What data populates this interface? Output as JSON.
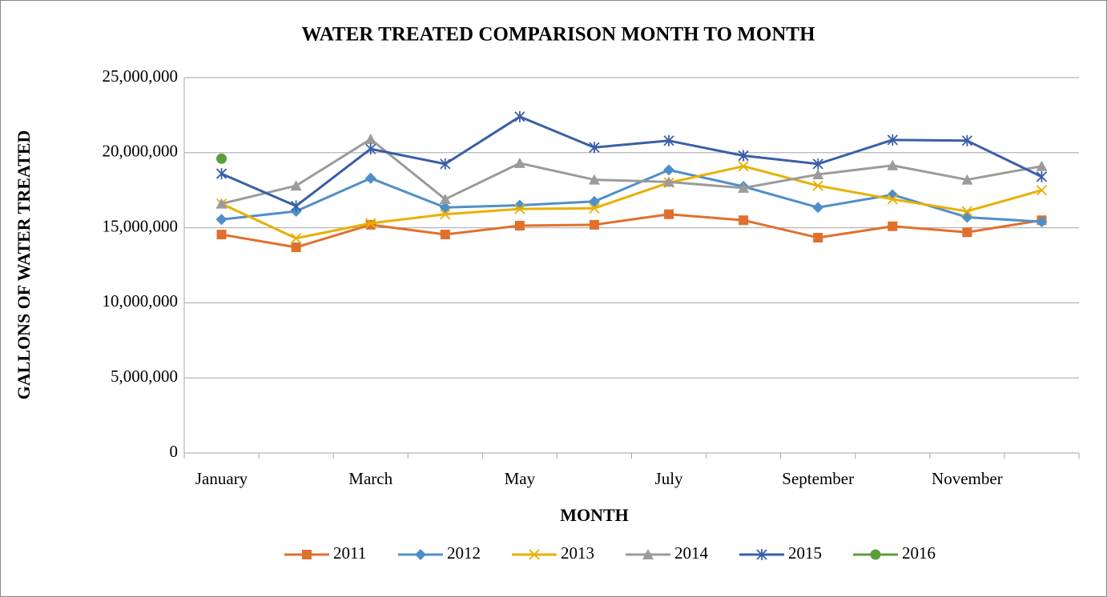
{
  "chart_data": {
    "type": "line",
    "title": "WATER TREATED COMPARISON MONTH TO MONTH",
    "x_label": "MONTH",
    "y_label": "GALLONS OF WATER TREATED",
    "categories": [
      "January",
      null,
      "March",
      null,
      "May",
      null,
      "July",
      null,
      "September",
      null,
      "November",
      null
    ],
    "ylim": [
      0,
      25000000
    ],
    "yticks": [
      {
        "value": 0,
        "label": "0"
      },
      {
        "value": 5000000,
        "label": "5,000,000"
      },
      {
        "value": 10000000,
        "label": "10,000,000"
      },
      {
        "value": 15000000,
        "label": "15,000,000"
      },
      {
        "value": 20000000,
        "label": "20,000,000"
      },
      {
        "value": 25000000,
        "label": "25,000,000"
      }
    ],
    "grid": true,
    "legend": "bottom",
    "series": [
      {
        "name": "2011",
        "color": "#e0702c",
        "marker": "square",
        "values": [
          14550000,
          13700000,
          15200000,
          14550000,
          15140000,
          15200000,
          15900000,
          15500000,
          14340000,
          15100000,
          14700000,
          15500000
        ]
      },
      {
        "name": "2012",
        "color": "#4f8fc8",
        "marker": "diamond",
        "values": [
          15550000,
          16100000,
          18300000,
          16350000,
          16500000,
          16750000,
          18850000,
          17750000,
          16350000,
          17200000,
          15700000,
          15400000
        ]
      },
      {
        "name": "2013",
        "color": "#e8b000",
        "marker": "x",
        "values": [
          16600000,
          14300000,
          15300000,
          15900000,
          16250000,
          16300000,
          18000000,
          19100000,
          17800000,
          16900000,
          16100000,
          17500000
        ]
      },
      {
        "name": "2014",
        "color": "#9b9b9b",
        "marker": "triangle",
        "values": [
          16600000,
          17800000,
          20900000,
          16900000,
          19300000,
          18200000,
          18050000,
          17650000,
          18550000,
          19150000,
          18200000,
          19100000
        ]
      },
      {
        "name": "2015",
        "color": "#3a5fa8",
        "marker": "star",
        "values": [
          18600000,
          16450000,
          20250000,
          19250000,
          22400000,
          20350000,
          20800000,
          19800000,
          19250000,
          20850000,
          20800000,
          18400000
        ]
      },
      {
        "name": "2016",
        "color": "#5a9e3c",
        "marker": "circle",
        "values": [
          19600000,
          null,
          null,
          null,
          null,
          null,
          null,
          null,
          null,
          null,
          null,
          null
        ]
      }
    ]
  }
}
